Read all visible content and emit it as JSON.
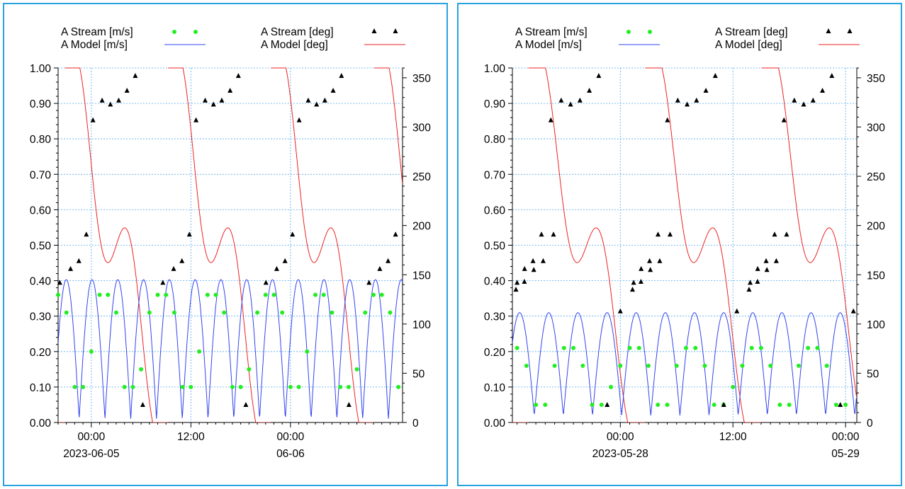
{
  "legend": {
    "stream_ms": "A Stream [m/s]",
    "model_ms": "A Model  [m/s]",
    "stream_deg": "A Stream [deg]",
    "model_deg": "A Model  [deg]"
  },
  "colors": {
    "stream_ms": "#22ee22",
    "model_ms": "#3344ee",
    "stream_deg": "#000000",
    "model_deg": "#ee2222",
    "grid": "#55aaee",
    "border": "#29a3e0"
  },
  "chart_data": [
    {
      "type": "scatter",
      "left_axis": {
        "ylim": [
          0,
          1.0
        ],
        "ticks": [
          "0.00",
          "0.10",
          "0.20",
          "0.30",
          "0.40",
          "0.50",
          "0.60",
          "0.70",
          "0.80",
          "0.90",
          "1.00"
        ],
        "unit": "m/s"
      },
      "right_axis": {
        "ylim": [
          0,
          360
        ],
        "ticks": [
          "0",
          "50",
          "100",
          "150",
          "200",
          "250",
          "300",
          "350"
        ],
        "unit": "deg"
      },
      "x_range_hours": [
        -4,
        37.5
      ],
      "x_ticks": [
        {
          "h": 0,
          "time": "00:00",
          "date": "2023-06-05"
        },
        {
          "h": 12,
          "time": "12:00",
          "date": ""
        },
        {
          "h": 24,
          "time": "00:00",
          "date": "06-06"
        }
      ],
      "stream_speed": {
        "h": [
          -4,
          -3,
          -2,
          -1,
          0,
          1,
          2,
          3,
          4,
          5,
          6,
          7,
          8,
          9,
          10,
          11,
          12,
          13,
          14,
          15,
          16,
          17,
          18,
          19,
          20,
          21,
          22,
          23,
          24,
          25,
          26,
          27,
          28,
          29,
          30,
          31,
          32,
          33,
          34,
          35,
          36,
          37
        ],
        "v": [
          0.36,
          0.31,
          0.1,
          0.1,
          0.2,
          0.36,
          0.36,
          0.31,
          0.1,
          0.1,
          0.15,
          0.31,
          0.36,
          0.36,
          0.31,
          0.1,
          0.1,
          0.2,
          0.36,
          0.36,
          0.31,
          0.1,
          0.1,
          0.15,
          0.31,
          0.36,
          0.36,
          0.31,
          0.1,
          0.1,
          0.2,
          0.36,
          0.36,
          0.31,
          0.1,
          0.1,
          0.15,
          0.31,
          0.36,
          0.36,
          0.31,
          0.1
        ]
      },
      "stream_dir": {
        "h": [
          -3.8,
          -2.5,
          -1.5,
          -0.6,
          0.2,
          1.3,
          2.3,
          3.3,
          4.3,
          5.3,
          6.2
        ],
        "v": [
          142,
          156,
          164,
          191,
          307,
          327,
          323,
          327,
          337,
          352,
          18
        ],
        "repeat_hours": 12.42
      },
      "model_speed": {
        "a": 0.23,
        "m": 0.01,
        "period": 6.21,
        "phase": 6.3
      },
      "model_dir": {
        "period": 12.42,
        "phase": -3.2
      }
    },
    {
      "type": "scatter",
      "left_axis": {
        "ylim": [
          0,
          1.0
        ],
        "ticks": [
          "0.00",
          "0.10",
          "0.20",
          "0.30",
          "0.40",
          "0.50",
          "0.60",
          "0.70",
          "0.80",
          "0.90",
          "1.00"
        ],
        "unit": "m/s"
      },
      "right_axis": {
        "ylim": [
          0,
          360
        ],
        "ticks": [
          "0",
          "50",
          "100",
          "150",
          "200",
          "250",
          "300",
          "350"
        ],
        "unit": "deg"
      },
      "x_range_hours": [
        -11.5,
        25.2
      ],
      "x_ticks": [
        {
          "h": 0,
          "time": "00:00",
          "date": "2023-05-28"
        },
        {
          "h": 12,
          "time": "12:00",
          "date": ""
        },
        {
          "h": 24,
          "time": "00:00",
          "date": "05-29"
        }
      ],
      "stream_speed": {
        "h": [
          -11,
          -10,
          -9,
          -8,
          -7,
          -6,
          -5,
          -4,
          -3,
          -2,
          -1,
          0,
          1,
          2,
          3,
          4,
          5,
          6,
          7,
          8,
          9,
          10,
          11,
          12,
          13,
          14,
          15,
          16,
          17,
          18,
          19,
          20,
          21,
          22,
          23,
          24
        ],
        "v": [
          0.21,
          0.16,
          0.05,
          0.05,
          0.16,
          0.21,
          0.21,
          0.16,
          0.05,
          0.05,
          0.1,
          0.16,
          0.21,
          0.21,
          0.16,
          0.05,
          0.05,
          0.16,
          0.21,
          0.21,
          0.16,
          0.05,
          0.05,
          0.1,
          0.16,
          0.21,
          0.21,
          0.16,
          0.05,
          0.05,
          0.16,
          0.21,
          0.21,
          0.16,
          0.05,
          0.05
        ]
      },
      "stream_dir": {
        "h": [
          -11,
          -10.2,
          -9.3,
          -8.4,
          -7.4,
          -6.3,
          -5.3,
          -4.3,
          -3.3,
          -2.3,
          -1.4,
          0,
          1.3,
          2.2,
          3.2,
          4.2,
          5.3
        ],
        "v": [
          142,
          156,
          164,
          191,
          307,
          327,
          323,
          327,
          337,
          352,
          18,
          113,
          135,
          143,
          155,
          164,
          191
        ],
        "repeat_hours": 12.42
      },
      "model_speed": {
        "a": 0.17,
        "m": 0.02,
        "period": 6.21,
        "phase": 4.8
      },
      "model_dir": {
        "period": 12.42,
        "phase": -9.8
      }
    }
  ]
}
